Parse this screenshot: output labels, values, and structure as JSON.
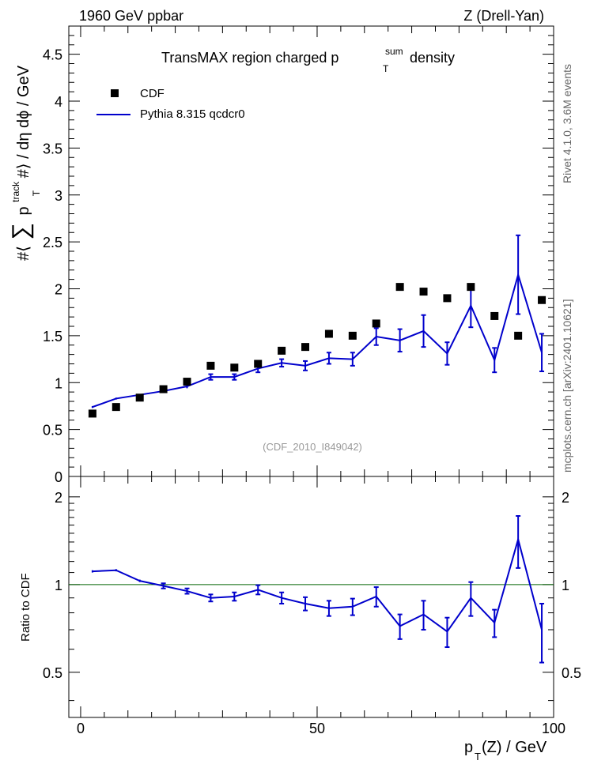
{
  "header": {
    "left": "1960 GeV ppbar",
    "right": "Z (Drell-Yan)"
  },
  "side_text": {
    "rivet": "Rivet 4.1.0,  3.6M events",
    "mcplots": "mcplots.cern.ch [arXiv:2401.10621]"
  },
  "colors": {
    "mc": "#0000cc",
    "data": "#000000",
    "ratio_line": "#006400",
    "watermark": "#999999"
  },
  "chart_data": [
    {
      "panel": "main",
      "type": "scatter",
      "title_main": "TransMAX region charged p",
      "title_sub": "T",
      "title_sup": "sum",
      "title_tail": "density",
      "ylabel": "#⟨ ∑ p_T^track # ⟩ / dη dϕ / GeV",
      "ylabel_lead": "#⟨",
      "ylabel_sum": "∑",
      "ylabel_p": "p",
      "ylabel_sup": "track",
      "ylabel_sub": "T",
      "ylabel_tail": "#⟩ / dη dϕ / GeV",
      "xlim": [
        -2.5,
        100
      ],
      "ylim": [
        0,
        4.8
      ],
      "yticks": [
        "0",
        "0.5",
        "1",
        "1.5",
        "2",
        "2.5",
        "3",
        "3.5",
        "4",
        "4.5"
      ],
      "watermark": "(CDF_2010_I849042)",
      "legend": [
        "CDF",
        "Pythia 8.315 qcdcr0"
      ],
      "legend_position": "top-left",
      "x": [
        2.5,
        7.5,
        12.5,
        17.5,
        22.5,
        27.5,
        32.5,
        37.5,
        42.5,
        47.5,
        52.5,
        57.5,
        62.5,
        67.5,
        72.5,
        77.5,
        82.5,
        87.5,
        92.5,
        97.5
      ],
      "series": [
        {
          "name": "CDF",
          "values": [
            0.67,
            0.74,
            0.84,
            0.93,
            1.01,
            1.18,
            1.16,
            1.2,
            1.34,
            1.38,
            1.52,
            1.5,
            1.63,
            2.02,
            1.97,
            1.9,
            2.02,
            1.71,
            1.5,
            1.88
          ]
        },
        {
          "name": "Pythia 8.315 qcdcr0",
          "values": [
            0.74,
            0.83,
            0.87,
            0.91,
            0.96,
            1.06,
            1.06,
            1.15,
            1.21,
            1.18,
            1.26,
            1.25,
            1.49,
            1.45,
            1.55,
            1.31,
            1.82,
            1.24,
            2.15,
            1.32
          ],
          "errors": [
            0.01,
            0.01,
            0.01,
            0.02,
            0.02,
            0.03,
            0.03,
            0.04,
            0.04,
            0.05,
            0.06,
            0.07,
            0.09,
            0.12,
            0.17,
            0.12,
            0.23,
            0.13,
            0.42,
            0.2
          ]
        }
      ]
    },
    {
      "panel": "ratio",
      "type": "line",
      "ylabel": "Ratio to CDF",
      "xlabel_p": "p",
      "xlabel_sub": "T",
      "xlabel_tail": "(Z) / GeV",
      "xlim": [
        -2.5,
        100
      ],
      "ylim": [
        0.35,
        2.35
      ],
      "yticks": [
        "0.5",
        "1",
        "2"
      ],
      "xticks": [
        "0",
        "50",
        "100"
      ],
      "x": [
        2.5,
        7.5,
        12.5,
        17.5,
        22.5,
        27.5,
        32.5,
        37.5,
        42.5,
        47.5,
        52.5,
        57.5,
        62.5,
        67.5,
        72.5,
        77.5,
        82.5,
        87.5,
        92.5,
        97.5
      ],
      "values": [
        1.11,
        1.12,
        1.03,
        0.99,
        0.95,
        0.9,
        0.91,
        0.96,
        0.9,
        0.86,
        0.83,
        0.84,
        0.91,
        0.72,
        0.79,
        0.69,
        0.9,
        0.74,
        1.43,
        0.7
      ],
      "errors": [
        0.01,
        0.01,
        0.01,
        0.02,
        0.02,
        0.025,
        0.03,
        0.035,
        0.04,
        0.045,
        0.05,
        0.055,
        0.07,
        0.07,
        0.09,
        0.08,
        0.12,
        0.08,
        0.29,
        0.16
      ]
    }
  ]
}
